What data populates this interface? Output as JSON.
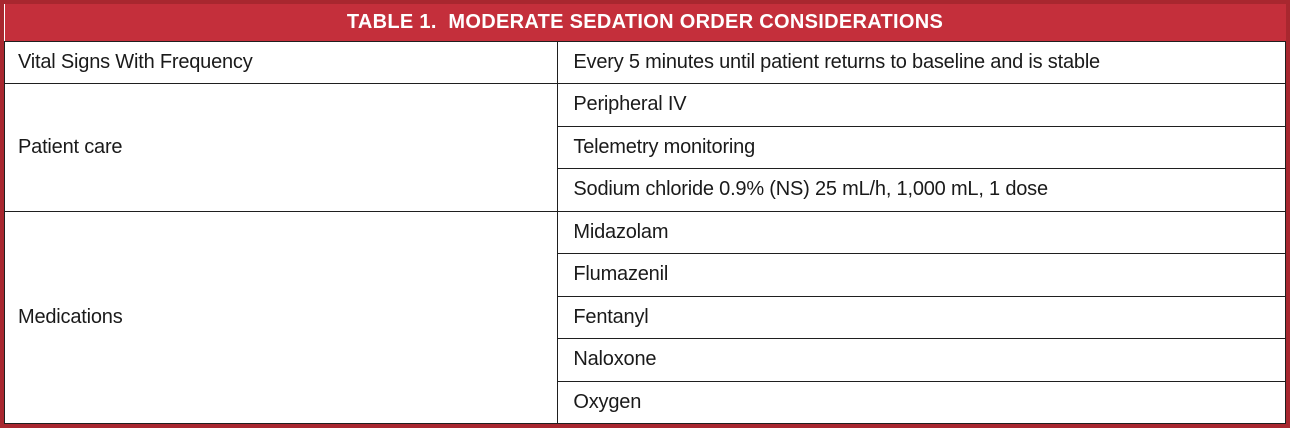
{
  "table": {
    "title": "TABLE 1.  MODERATE SEDATION ORDER CONSIDERATIONS",
    "colors": {
      "header_bg": "#c42f3b",
      "border_outer": "#a8272f",
      "grid_line": "#1f1f1f",
      "cell_text": "#1a1a1a"
    },
    "rows": [
      {
        "label": "Vital Signs With Frequency",
        "items": [
          "Every 5 minutes until patient returns to baseline and is stable"
        ]
      },
      {
        "label": "Patient care",
        "items": [
          "Peripheral IV",
          "Telemetry monitoring",
          "Sodium chloride 0.9% (NS) 25 mL/h, 1,000 mL, 1 dose"
        ]
      },
      {
        "label": "Medications",
        "items": [
          "Midazolam",
          "Flumazenil",
          "Fentanyl",
          "Naloxone",
          "Oxygen"
        ]
      }
    ]
  }
}
